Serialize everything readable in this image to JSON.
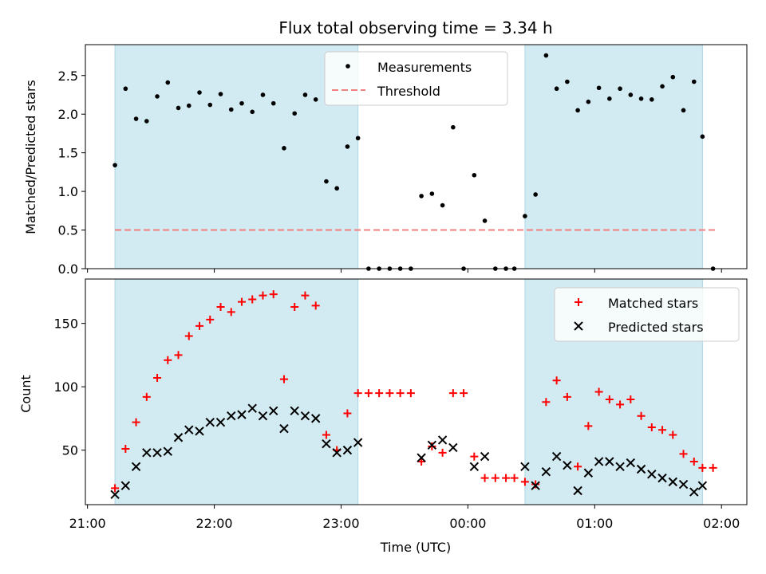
{
  "title": "Flux total observing time = 3.34 h",
  "shaded_intervals": [
    [
      "21:13",
      "23:08"
    ],
    [
      "00:27",
      "01:51"
    ]
  ],
  "colors": {
    "shade": "#add8e6",
    "measurement": "#000000",
    "threshold": "#f08080",
    "matched": "#ff0000",
    "predicted": "#000000"
  },
  "chart_data": [
    {
      "type": "scatter",
      "ylabel": "Matched/Predicted stars",
      "xlim": [
        "20:59",
        "02:12"
      ],
      "ylim": [
        0,
        2.9
      ],
      "yticks": [
        0.0,
        0.5,
        1.0,
        1.5,
        2.0,
        2.5
      ],
      "ytick_labels": [
        "0.0",
        "0.5",
        "1.0",
        "1.5",
        "2.0",
        "2.5"
      ],
      "legend": {
        "placement": "top-center",
        "entries": [
          "Measurements",
          "Threshold"
        ]
      },
      "series": [
        {
          "name": "Measurements",
          "marker": "dot",
          "points": [
            [
              "21:13",
              1.34
            ],
            [
              "21:18",
              2.33
            ],
            [
              "21:23",
              1.94
            ],
            [
              "21:28",
              1.91
            ],
            [
              "21:33",
              2.23
            ],
            [
              "21:38",
              2.41
            ],
            [
              "21:43",
              2.08
            ],
            [
              "21:48",
              2.11
            ],
            [
              "21:53",
              2.28
            ],
            [
              "21:58",
              2.12
            ],
            [
              "22:03",
              2.26
            ],
            [
              "22:08",
              2.06
            ],
            [
              "22:13",
              2.14
            ],
            [
              "22:18",
              2.03
            ],
            [
              "22:23",
              2.25
            ],
            [
              "22:28",
              2.14
            ],
            [
              "22:33",
              1.56
            ],
            [
              "22:38",
              2.01
            ],
            [
              "22:43",
              2.25
            ],
            [
              "22:48",
              2.19
            ],
            [
              "22:53",
              1.13
            ],
            [
              "22:58",
              1.04
            ],
            [
              "23:03",
              1.58
            ],
            [
              "23:08",
              1.69
            ],
            [
              "23:13",
              0.0
            ],
            [
              "23:18",
              0.0
            ],
            [
              "23:23",
              0.0
            ],
            [
              "23:28",
              0.0
            ],
            [
              "23:33",
              0.0
            ],
            [
              "23:38",
              0.94
            ],
            [
              "23:43",
              0.97
            ],
            [
              "23:48",
              0.82
            ],
            [
              "23:53",
              1.83
            ],
            [
              "23:58",
              0.0
            ],
            [
              "00:03",
              1.21
            ],
            [
              "00:08",
              0.62
            ],
            [
              "00:13",
              0.0
            ],
            [
              "00:18",
              0.0
            ],
            [
              "00:22",
              0.0
            ],
            [
              "00:27",
              0.68
            ],
            [
              "00:32",
              0.96
            ],
            [
              "00:37",
              2.76
            ],
            [
              "00:42",
              2.33
            ],
            [
              "00:47",
              2.42
            ],
            [
              "00:52",
              2.05
            ],
            [
              "00:57",
              2.16
            ],
            [
              "01:02",
              2.34
            ],
            [
              "01:07",
              2.2
            ],
            [
              "01:12",
              2.33
            ],
            [
              "01:17",
              2.25
            ],
            [
              "01:22",
              2.2
            ],
            [
              "01:27",
              2.19
            ],
            [
              "01:32",
              2.36
            ],
            [
              "01:37",
              2.48
            ],
            [
              "01:42",
              2.05
            ],
            [
              "01:47",
              2.42
            ],
            [
              "01:51",
              1.71
            ],
            [
              "01:56",
              0.0
            ]
          ]
        },
        {
          "name": "Threshold",
          "style": "dashed",
          "x": [
            "21:13",
            "01:58"
          ],
          "y": 0.5
        }
      ]
    },
    {
      "type": "scatter",
      "xlabel": "Time (UTC)",
      "ylabel": "Count",
      "xlim": [
        "20:59",
        "02:12"
      ],
      "ylim": [
        7,
        185
      ],
      "yticks": [
        50,
        100,
        150
      ],
      "ytick_labels": [
        "50",
        "100",
        "150"
      ],
      "xticks": [
        "21:00",
        "22:00",
        "23:00",
        "00:00",
        "01:00",
        "02:00"
      ],
      "xtick_labels": [
        "21:00",
        "22:00",
        "23:00",
        "00:00",
        "01:00",
        "02:00"
      ],
      "legend": {
        "placement": "top-right",
        "entries": [
          "Matched stars",
          "Predicted stars"
        ]
      },
      "series": [
        {
          "name": "Matched stars",
          "marker": "plus",
          "points": [
            [
              "21:13",
              20
            ],
            [
              "21:18",
              51
            ],
            [
              "21:23",
              72
            ],
            [
              "21:28",
              92
            ],
            [
              "21:33",
              107
            ],
            [
              "21:38",
              121
            ],
            [
              "21:43",
              125
            ],
            [
              "21:48",
              140
            ],
            [
              "21:53",
              148
            ],
            [
              "21:58",
              153
            ],
            [
              "22:03",
              163
            ],
            [
              "22:08",
              159
            ],
            [
              "22:13",
              167
            ],
            [
              "22:18",
              169
            ],
            [
              "22:23",
              172
            ],
            [
              "22:28",
              173
            ],
            [
              "22:33",
              106
            ],
            [
              "22:38",
              163
            ],
            [
              "22:43",
              172
            ],
            [
              "22:48",
              164
            ],
            [
              "22:53",
              62
            ],
            [
              "22:58",
              50
            ],
            [
              "23:03",
              79
            ],
            [
              "23:08",
              95
            ],
            [
              "23:13",
              95
            ],
            [
              "23:18",
              95
            ],
            [
              "23:23",
              95
            ],
            [
              "23:28",
              95
            ],
            [
              "23:33",
              95
            ],
            [
              "23:38",
              41
            ],
            [
              "23:43",
              53
            ],
            [
              "23:48",
              48
            ],
            [
              "23:53",
              95
            ],
            [
              "23:58",
              95
            ],
            [
              "00:03",
              45
            ],
            [
              "00:08",
              28
            ],
            [
              "00:13",
              28
            ],
            [
              "00:18",
              28
            ],
            [
              "00:22",
              28
            ],
            [
              "00:27",
              25
            ],
            [
              "00:32",
              23
            ],
            [
              "00:37",
              88
            ],
            [
              "00:42",
              105
            ],
            [
              "00:47",
              92
            ],
            [
              "00:52",
              37
            ],
            [
              "00:57",
              69
            ],
            [
              "01:02",
              96
            ],
            [
              "01:07",
              90
            ],
            [
              "01:12",
              86
            ],
            [
              "01:17",
              90
            ],
            [
              "01:22",
              77
            ],
            [
              "01:27",
              68
            ],
            [
              "01:32",
              66
            ],
            [
              "01:37",
              62
            ],
            [
              "01:42",
              47
            ],
            [
              "01:47",
              41
            ],
            [
              "01:51",
              36
            ],
            [
              "01:56",
              36
            ]
          ]
        },
        {
          "name": "Predicted stars",
          "marker": "x",
          "points": [
            [
              "21:13",
              15
            ],
            [
              "21:18",
              22
            ],
            [
              "21:23",
              37
            ],
            [
              "21:28",
              48
            ],
            [
              "21:33",
              48
            ],
            [
              "21:38",
              49
            ],
            [
              "21:43",
              60
            ],
            [
              "21:48",
              66
            ],
            [
              "21:53",
              65
            ],
            [
              "21:58",
              72
            ],
            [
              "22:03",
              72
            ],
            [
              "22:08",
              77
            ],
            [
              "22:13",
              78
            ],
            [
              "22:18",
              83
            ],
            [
              "22:23",
              77
            ],
            [
              "22:28",
              81
            ],
            [
              "22:33",
              67
            ],
            [
              "22:38",
              81
            ],
            [
              "22:43",
              77
            ],
            [
              "22:48",
              75
            ],
            [
              "22:53",
              55
            ],
            [
              "22:58",
              48
            ],
            [
              "23:03",
              50
            ],
            [
              "23:08",
              56
            ],
            [
              "23:38",
              44
            ],
            [
              "23:43",
              54
            ],
            [
              "23:48",
              58
            ],
            [
              "23:53",
              52
            ],
            [
              "00:03",
              37
            ],
            [
              "00:08",
              45
            ],
            [
              "00:27",
              37
            ],
            [
              "00:32",
              22
            ],
            [
              "00:37",
              33
            ],
            [
              "00:42",
              45
            ],
            [
              "00:47",
              38
            ],
            [
              "00:52",
              18
            ],
            [
              "00:57",
              32
            ],
            [
              "01:02",
              41
            ],
            [
              "01:07",
              41
            ],
            [
              "01:12",
              37
            ],
            [
              "01:17",
              40
            ],
            [
              "01:22",
              35
            ],
            [
              "01:27",
              31
            ],
            [
              "01:32",
              28
            ],
            [
              "01:37",
              25
            ],
            [
              "01:42",
              23
            ],
            [
              "01:47",
              17
            ],
            [
              "01:51",
              22
            ]
          ]
        }
      ]
    }
  ]
}
